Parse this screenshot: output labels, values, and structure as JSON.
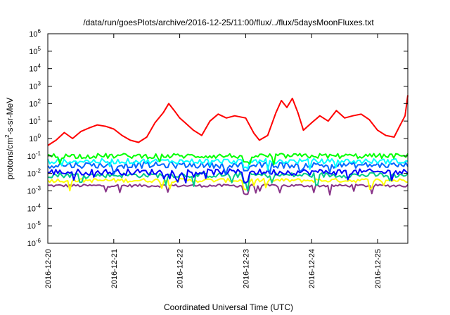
{
  "chart_data": {
    "type": "line",
    "title": "/data/run/goesPlots/archive/2016-12-25/11:00/flux/../flux/5daysMoonFluxes.txt",
    "xlabel": "Coordinated Universal Time (UTC)",
    "ylabel": {
      "base": "protons/cm",
      "sup": "2",
      "rest": "-s-sr-MeV"
    },
    "y_scale": "log",
    "ylim": [
      1e-06,
      1000000.0
    ],
    "y_ticks": [
      {
        "base": "10",
        "exp": "-6"
      },
      {
        "base": "10",
        "exp": "-5"
      },
      {
        "base": "10",
        "exp": "-4"
      },
      {
        "base": "10",
        "exp": "-3"
      },
      {
        "base": "10",
        "exp": "-2"
      },
      {
        "base": "10",
        "exp": "-1"
      },
      {
        "base": "10",
        "exp": "0"
      },
      {
        "base": "10",
        "exp": "1"
      },
      {
        "base": "10",
        "exp": "2"
      },
      {
        "base": "10",
        "exp": "3"
      },
      {
        "base": "10",
        "exp": "4"
      },
      {
        "base": "10",
        "exp": "5"
      },
      {
        "base": "10",
        "exp": "6"
      }
    ],
    "x_ticks": [
      "2016-12-20",
      "2016-12-21",
      "2016-12-22",
      "2016-12-23",
      "2016-12-24",
      "2016-12-25"
    ],
    "x_range": [
      "2016-12-20 00:00",
      "2016-12-25 11:00"
    ],
    "grid": false,
    "legend": "none",
    "series": [
      {
        "color": "#ff0000",
        "points": [
          [
            "2016-12-20 00:00",
            0.4
          ],
          [
            "2016-12-20 03:00",
            0.8
          ],
          [
            "2016-12-20 06:00",
            2.2
          ],
          [
            "2016-12-20 09:00",
            1.0
          ],
          [
            "2016-12-20 12:00",
            2.5
          ],
          [
            "2016-12-20 15:00",
            4.0
          ],
          [
            "2016-12-20 18:00",
            6.0
          ],
          [
            "2016-12-20 21:00",
            5.0
          ],
          [
            "2016-12-21 00:00",
            3.5
          ],
          [
            "2016-12-21 03:00",
            1.5
          ],
          [
            "2016-12-21 06:00",
            0.8
          ],
          [
            "2016-12-21 09:00",
            0.6
          ],
          [
            "2016-12-21 12:00",
            1.2
          ],
          [
            "2016-12-21 15:00",
            8.0
          ],
          [
            "2016-12-21 18:00",
            30
          ],
          [
            "2016-12-21 20:00",
            100
          ],
          [
            "2016-12-21 22:00",
            40
          ],
          [
            "2016-12-22 00:00",
            15
          ],
          [
            "2016-12-22 02:00",
            8
          ],
          [
            "2016-12-22 05:00",
            3
          ],
          [
            "2016-12-22 08:00",
            1.5
          ],
          [
            "2016-12-22 11:00",
            10
          ],
          [
            "2016-12-22 14:00",
            25
          ],
          [
            "2016-12-22 17:00",
            15
          ],
          [
            "2016-12-22 20:00",
            20
          ],
          [
            "2016-12-23 00:00",
            15
          ],
          [
            "2016-12-23 03:00",
            2
          ],
          [
            "2016-12-23 05:00",
            0.8
          ],
          [
            "2016-12-23 08:00",
            1.5
          ],
          [
            "2016-12-23 11:00",
            30
          ],
          [
            "2016-12-23 13:00",
            150
          ],
          [
            "2016-12-23 15:00",
            60
          ],
          [
            "2016-12-23 17:00",
            200
          ],
          [
            "2016-12-23 19:00",
            30
          ],
          [
            "2016-12-23 21:00",
            3
          ],
          [
            "2016-12-24 00:00",
            8
          ],
          [
            "2016-12-24 03:00",
            20
          ],
          [
            "2016-12-24 06:00",
            10
          ],
          [
            "2016-12-24 09:00",
            40
          ],
          [
            "2016-12-24 12:00",
            15
          ],
          [
            "2016-12-24 15:00",
            20
          ],
          [
            "2016-12-24 18:00",
            25
          ],
          [
            "2016-12-24 21:00",
            12
          ],
          [
            "2016-12-25 00:00",
            3
          ],
          [
            "2016-12-25 03:00",
            1.5
          ],
          [
            "2016-12-25 06:00",
            1.2
          ],
          [
            "2016-12-25 08:00",
            5
          ],
          [
            "2016-12-25 10:00",
            20
          ],
          [
            "2016-12-25 11:00",
            300
          ]
        ]
      },
      {
        "color": "#00ff00",
        "level": 0.1,
        "variation": 1.4
      },
      {
        "color": "#00ffff",
        "level": 0.05,
        "variation": 1.4
      },
      {
        "color": "#0066ff",
        "level": 0.03,
        "variation": 1.5
      },
      {
        "color": "#0000ff",
        "level": 0.012,
        "variation": 1.5
      },
      {
        "color": "#00cc88",
        "level": 0.008,
        "variation": 1.4
      },
      {
        "color": "#ffff00",
        "level": 0.004,
        "variation": 1.3
      },
      {
        "color": "#883388",
        "level": 0.002,
        "variation": 1.2
      }
    ]
  }
}
